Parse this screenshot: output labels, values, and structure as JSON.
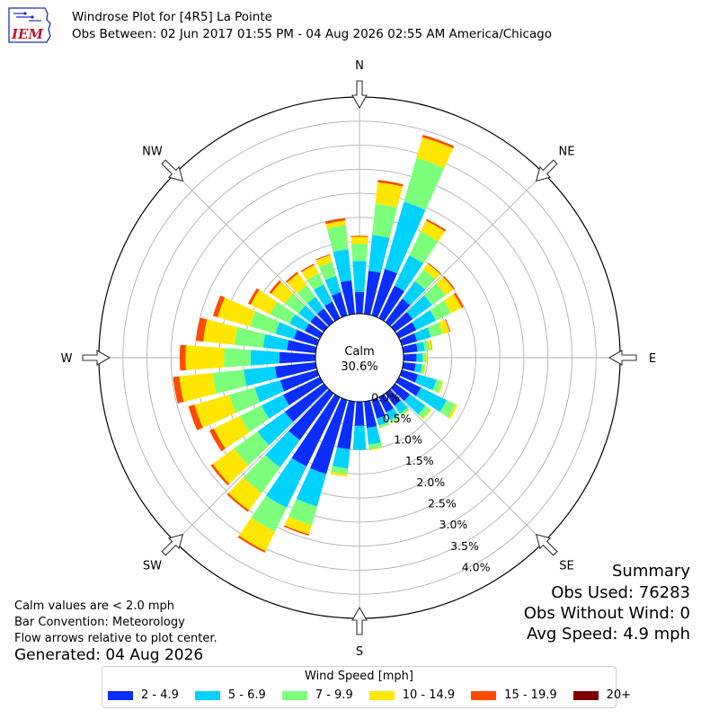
{
  "logo": {
    "text": "IEM",
    "color": "#c8102e"
  },
  "header": {
    "title": "Windrose Plot for [4R5] La Pointe",
    "subtitle": "Obs Between: 02 Jun 2017 01:55 PM - 04 Aug 2026 02:55 AM America/Chicago"
  },
  "notes": {
    "calm": "Calm values are < 2.0 mph",
    "bar": "Bar Convention: Meteorology",
    "flow": "Flow arrows relative to plot center.",
    "generated": "Generated: 04 Aug 2026"
  },
  "summary": {
    "title": "Summary",
    "obs_used": "Obs Used: 76283",
    "obs_without_wind": "Obs Without Wind: 0",
    "avg_speed": "Avg Speed: 4.9 mph"
  },
  "legend": {
    "title": "Wind Speed [mph]"
  },
  "chart_data": {
    "type": "windrose",
    "center_label": "Calm",
    "center_value": "30.6%",
    "calm_percent": 30.6,
    "radial_max": 4.5,
    "radial_ticks": [
      0.0,
      0.5,
      1.0,
      1.5,
      2.0,
      2.5,
      3.0,
      3.5,
      4.0
    ],
    "radial_tick_labels": [
      "0.0%",
      "0.5%",
      "1.0%",
      "1.5%",
      "2.0%",
      "2.5%",
      "3.0%",
      "3.5%",
      "4.0%"
    ],
    "grid": true,
    "compass_labels": [
      "N",
      "NE",
      "E",
      "SE",
      "S",
      "SW",
      "W",
      "NW"
    ],
    "directions_deg": [
      0,
      10,
      20,
      30,
      40,
      50,
      60,
      70,
      80,
      90,
      100,
      110,
      120,
      130,
      140,
      150,
      160,
      170,
      180,
      190,
      200,
      210,
      220,
      230,
      240,
      250,
      260,
      270,
      280,
      290,
      300,
      310,
      320,
      330,
      340,
      350
    ],
    "bins": [
      {
        "label": "2 - 4.9",
        "color": "#0a2eff"
      },
      {
        "label": "5 - 6.9",
        "color": "#00d2ff"
      },
      {
        "label": "7 - 9.9",
        "color": "#7cff7a"
      },
      {
        "label": "10 - 14.9",
        "color": "#ffe600"
      },
      {
        "label": "15 - 19.9",
        "color": "#ff4a00"
      },
      {
        "label": "20+",
        "color": "#7f0000"
      }
    ],
    "values": [
      [
        0.45,
        0.65,
        0.35,
        0.15,
        0.02,
        0.0
      ],
      [
        0.9,
        0.75,
        0.65,
        0.45,
        0.05,
        0.0
      ],
      [
        1.0,
        1.45,
        0.95,
        0.45,
        0.05,
        0.0
      ],
      [
        0.75,
        0.7,
        0.55,
        0.25,
        0.04,
        0.0
      ],
      [
        0.6,
        0.45,
        0.3,
        0.15,
        0.02,
        0.0
      ],
      [
        0.45,
        0.5,
        0.35,
        0.2,
        0.03,
        0.0
      ],
      [
        0.4,
        0.45,
        0.35,
        0.25,
        0.04,
        0.0
      ],
      [
        0.33,
        0.3,
        0.25,
        0.15,
        0.02,
        0.0
      ],
      [
        0.3,
        0.15,
        0.1,
        0.05,
        0.01,
        0.0
      ],
      [
        0.27,
        0.13,
        0.07,
        0.02,
        0.0,
        0.0
      ],
      [
        0.26,
        0.13,
        0.06,
        0.02,
        0.0,
        0.0
      ],
      [
        0.35,
        0.4,
        0.12,
        0.03,
        0.0,
        0.0
      ],
      [
        0.5,
        0.6,
        0.2,
        0.05,
        0.0,
        0.0
      ],
      [
        0.38,
        0.4,
        0.12,
        0.03,
        0.0,
        0.0
      ],
      [
        0.32,
        0.2,
        0.06,
        0.01,
        0.0,
        0.0
      ],
      [
        0.35,
        0.18,
        0.06,
        0.01,
        0.0,
        0.0
      ],
      [
        0.4,
        0.15,
        0.05,
        0.01,
        0.0,
        0.0
      ],
      [
        0.55,
        0.35,
        0.1,
        0.02,
        0.0,
        0.0
      ],
      [
        0.5,
        0.5,
        0.0,
        0.0,
        0.0,
        0.0
      ],
      [
        1.0,
        0.4,
        0.12,
        0.05,
        0.0,
        0.0
      ],
      [
        1.6,
        0.7,
        0.4,
        0.2,
        0.03,
        0.0
      ],
      [
        1.6,
        0.95,
        0.55,
        0.45,
        0.04,
        0.0
      ],
      [
        1.2,
        0.7,
        0.65,
        0.45,
        0.04,
        0.0
      ],
      [
        1.0,
        0.7,
        0.6,
        0.55,
        0.05,
        0.0
      ],
      [
        0.85,
        0.5,
        0.5,
        0.6,
        0.1,
        0.0
      ],
      [
        0.8,
        0.55,
        0.55,
        0.75,
        0.13,
        0.0
      ],
      [
        0.85,
        0.65,
        0.65,
        0.7,
        0.13,
        0.0
      ],
      [
        0.75,
        0.6,
        0.55,
        0.8,
        0.12,
        0.0
      ],
      [
        0.6,
        0.5,
        0.6,
        0.65,
        0.15,
        0.0
      ],
      [
        0.5,
        0.4,
        0.55,
        0.7,
        0.1,
        0.0
      ],
      [
        0.35,
        0.35,
        0.45,
        0.45,
        0.06,
        0.0
      ],
      [
        0.35,
        0.3,
        0.35,
        0.35,
        0.05,
        0.0
      ],
      [
        0.35,
        0.3,
        0.3,
        0.3,
        0.04,
        0.0
      ],
      [
        0.38,
        0.4,
        0.25,
        0.2,
        0.03,
        0.0
      ],
      [
        0.5,
        0.35,
        0.3,
        0.15,
        0.02,
        0.0
      ],
      [
        0.7,
        0.65,
        0.5,
        0.1,
        0.05,
        0.0
      ]
    ]
  }
}
